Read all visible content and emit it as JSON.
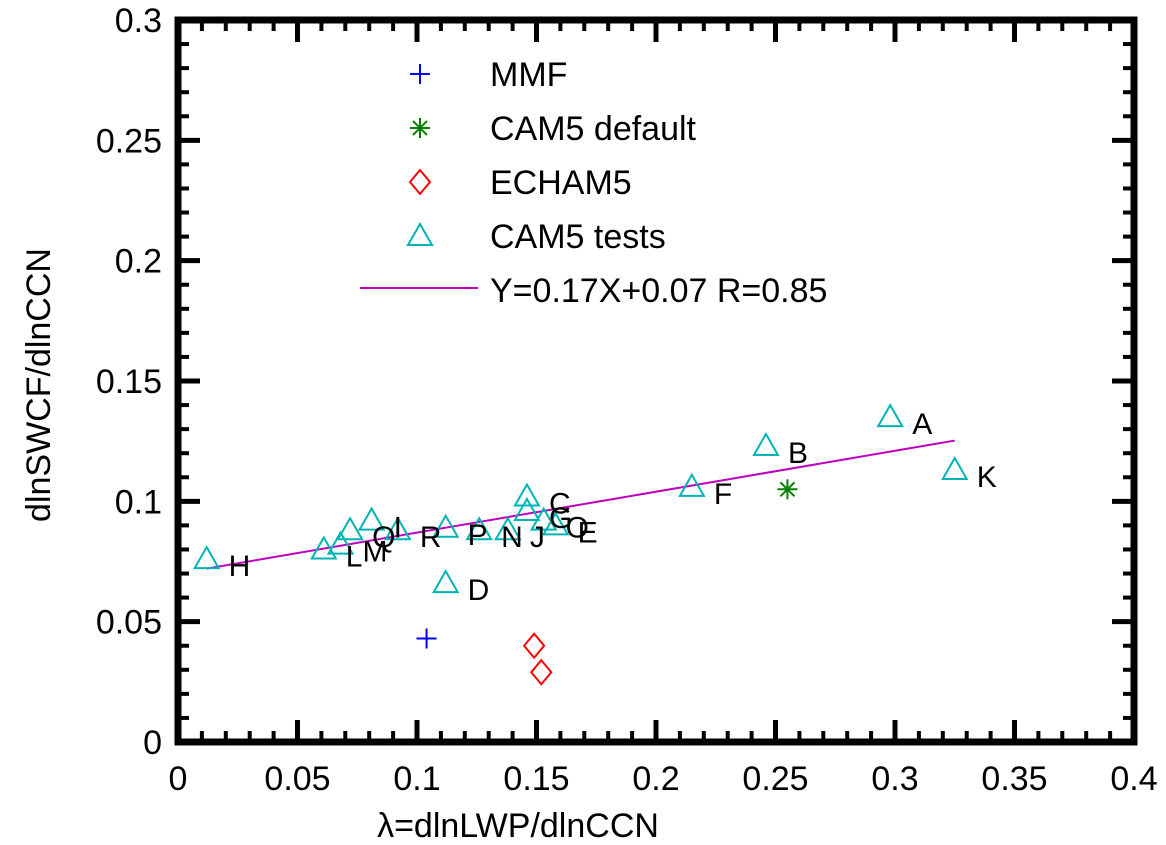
{
  "chart_data": {
    "type": "scatter",
    "xlabel": "λ=dlnLWP/dlnCCN",
    "ylabel": "dlnSWCF/dlnCCN",
    "xlim": [
      0,
      0.4
    ],
    "ylim": [
      0,
      0.3
    ],
    "x_ticks": [
      0,
      0.05,
      0.1,
      0.15,
      0.2,
      0.25,
      0.3,
      0.35,
      0.4
    ],
    "x_tick_labels": [
      "0",
      "0.05",
      "0.1",
      "0.15",
      "0.2",
      "0.25",
      "0.3",
      "0.35",
      "0.4"
    ],
    "y_ticks": [
      0,
      0.05,
      0.1,
      0.15,
      0.2,
      0.25,
      0.3
    ],
    "y_tick_labels": [
      "0",
      "0.05",
      "0.1",
      "0.15",
      "0.2",
      "0.25",
      "0.3"
    ],
    "grid": false,
    "legend_position": "top-center",
    "series": [
      {
        "name": "MMF",
        "marker": "plus",
        "color": "#0000ff",
        "points": [
          {
            "x": 0.104,
            "y": 0.043
          }
        ]
      },
      {
        "name": "CAM5 default",
        "marker": "asterisk",
        "color": "#008000",
        "points": [
          {
            "x": 0.255,
            "y": 0.105
          }
        ]
      },
      {
        "name": "ECHAM5",
        "marker": "diamond",
        "color": "#ff0000",
        "points": [
          {
            "x": 0.149,
            "y": 0.04
          },
          {
            "x": 0.152,
            "y": 0.029
          }
        ]
      },
      {
        "name": "CAM5 tests",
        "marker": "triangle",
        "color": "#00b4b4",
        "points": [
          {
            "x": 0.298,
            "y": 0.135,
            "label": "A"
          },
          {
            "x": 0.246,
            "y": 0.123,
            "label": "B"
          },
          {
            "x": 0.146,
            "y": 0.102,
            "label": "C"
          },
          {
            "x": 0.112,
            "y": 0.066,
            "label": "D"
          },
          {
            "x": 0.158,
            "y": 0.09,
            "label": "E"
          },
          {
            "x": 0.215,
            "y": 0.106,
            "label": "F"
          },
          {
            "x": 0.146,
            "y": 0.096,
            "label": "G"
          },
          {
            "x": 0.012,
            "y": 0.076,
            "label": "H"
          },
          {
            "x": 0.081,
            "y": 0.092,
            "label": "I"
          },
          {
            "x": 0.138,
            "y": 0.088,
            "label": "J"
          },
          {
            "x": 0.325,
            "y": 0.113,
            "label": "K"
          },
          {
            "x": 0.061,
            "y": 0.08,
            "label": "L"
          },
          {
            "x": 0.068,
            "y": 0.082,
            "label": "M"
          },
          {
            "x": 0.126,
            "y": 0.088,
            "label": "N"
          },
          {
            "x": 0.153,
            "y": 0.092,
            "label": "O"
          },
          {
            "x": 0.112,
            "y": 0.089,
            "label": "P"
          },
          {
            "x": 0.072,
            "y": 0.088,
            "label": "Q"
          },
          {
            "x": 0.092,
            "y": 0.088,
            "label": "R"
          }
        ]
      }
    ],
    "fit_line": {
      "name": "Y=0.17X+0.07   R=0.85",
      "color": "#c000c0",
      "slope": 0.17,
      "intercept": 0.07,
      "x_range": [
        0.012,
        0.325
      ]
    }
  }
}
